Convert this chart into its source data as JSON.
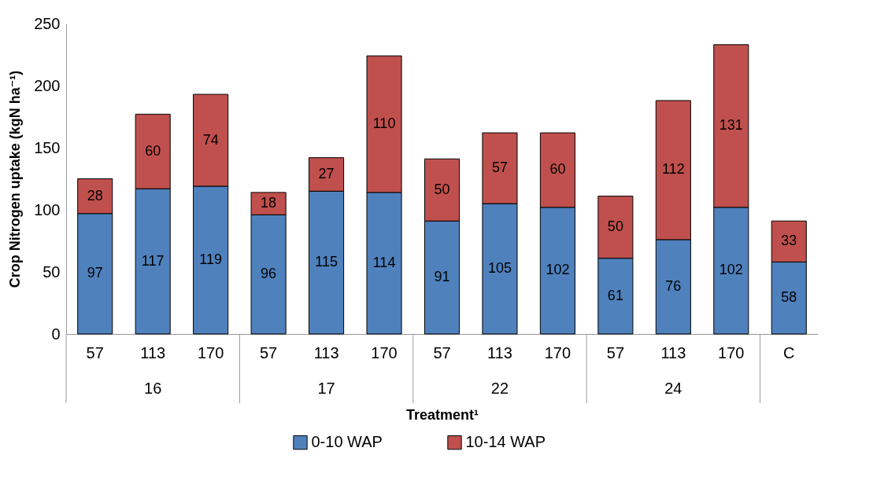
{
  "chart_data": {
    "type": "bar",
    "stacked": true,
    "xlabel": "Treatment¹",
    "ylabel": "Crop Nitrogen uptake (kgN ha⁻¹)",
    "categories": [
      "57",
      "113",
      "170",
      "57",
      "113",
      "170",
      "57",
      "113",
      "170",
      "57",
      "113",
      "170",
      "C"
    ],
    "annotations": [
      "16",
      "17",
      "22",
      "24"
    ],
    "series": [
      {
        "name": "0-10 WAP",
        "color": "#4f81bd",
        "values": [
          97,
          117,
          119,
          96,
          115,
          114,
          91,
          105,
          102,
          61,
          76,
          102,
          58
        ]
      },
      {
        "name": "10-14 WAP",
        "color": "#c0504d",
        "values": [
          28,
          60,
          74,
          18,
          27,
          110,
          50,
          57,
          60,
          50,
          112,
          131,
          33
        ]
      }
    ],
    "ylim": [
      0,
      250
    ],
    "yticks": [
      0,
      50,
      100,
      150,
      200,
      250
    ],
    "grid": false,
    "legend": "bottom",
    "data_labels": true
  }
}
